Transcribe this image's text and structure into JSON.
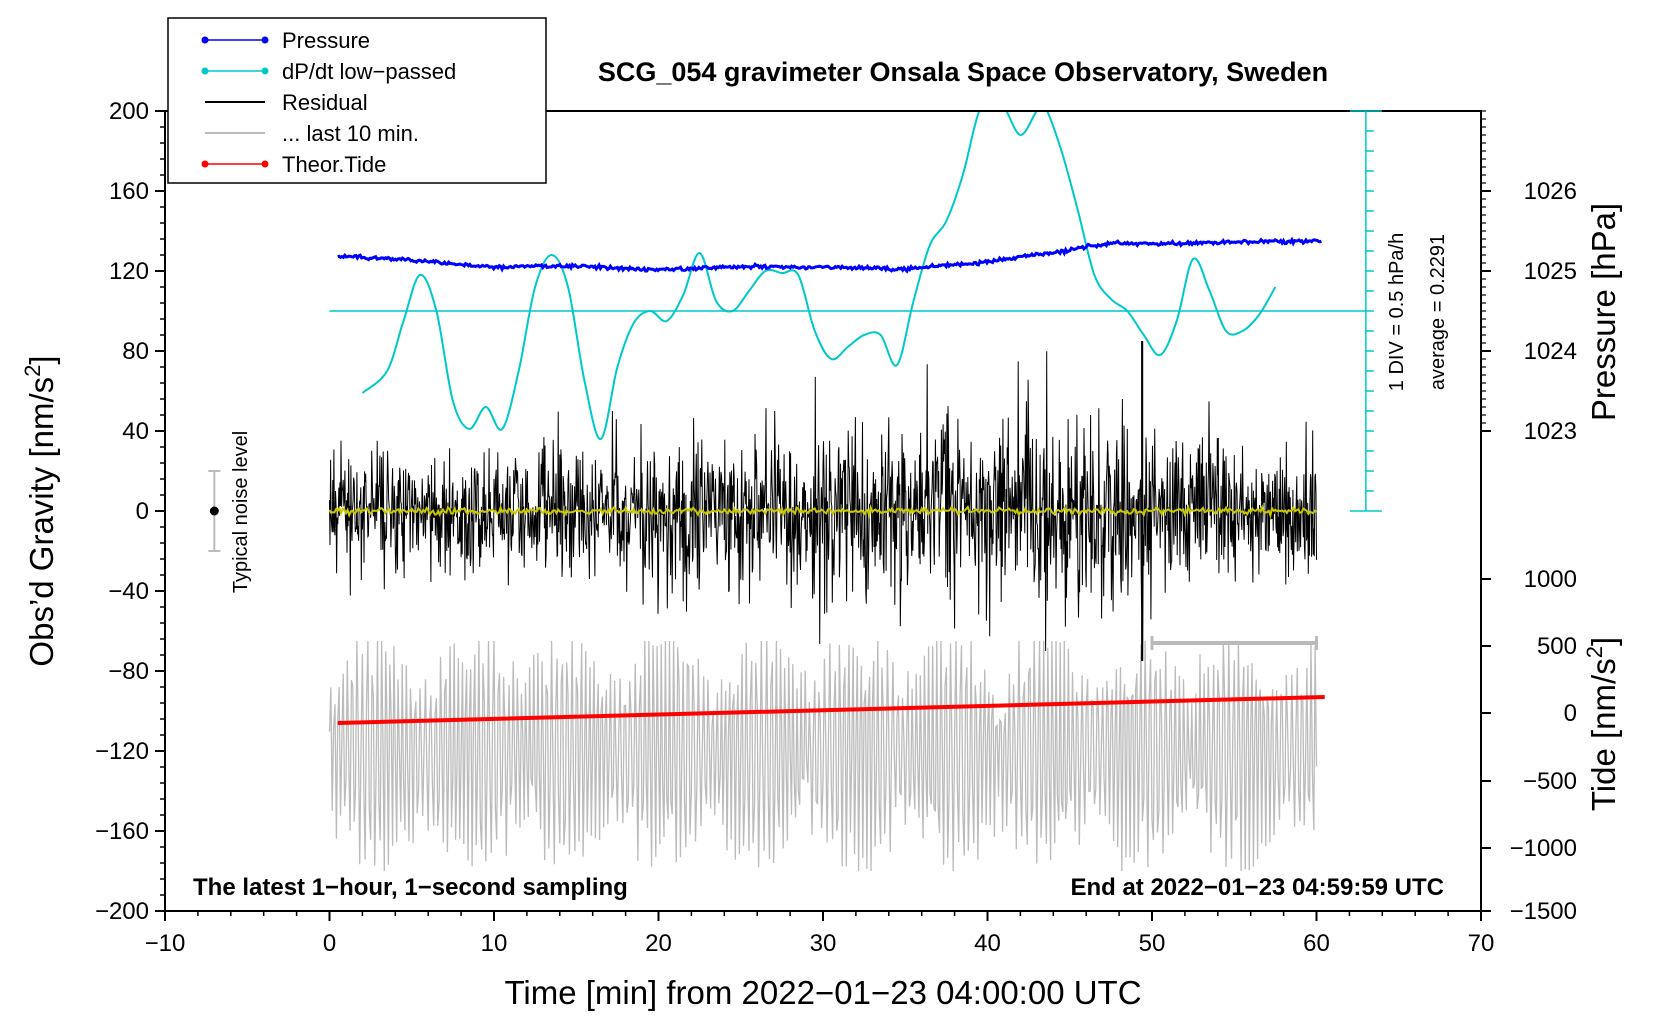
{
  "chart_data": {
    "type": "line",
    "title": "SCG_054 gravimeter Onsala Space Observatory, Sweden",
    "xlabel": "Time [min] from 2022−01−23 04:00:00 UTC",
    "ylabel_left": "Obs’d Gravity [nm/s",
    "ylabel_left_sup": "2",
    "ylabel_left_end": "]",
    "ylabel_right_top": "Pressure [hPa]",
    "ylabel_right_bottom": "Tide [nm/s",
    "ylabel_right_bottom_sup": "2",
    "ylabel_right_bottom_end": "]",
    "xlim": [
      -10,
      70
    ],
    "ylim": [
      -200,
      200
    ],
    "x_ticks": [
      -10,
      0,
      10,
      20,
      30,
      40,
      50,
      60,
      70
    ],
    "x_tick_labels": [
      "−10",
      "0",
      "10",
      "20",
      "30",
      "40",
      "50",
      "60",
      "70"
    ],
    "y_ticks": [
      200,
      160,
      120,
      80,
      40,
      0,
      -40,
      -80,
      -120,
      -160,
      -200
    ],
    "y_tick_labels": [
      "200",
      "160",
      "120",
      "80",
      "40",
      "0",
      "−40",
      "−80",
      "−120",
      "−160",
      "−200"
    ],
    "pressure_axis": {
      "ticks": [
        1023,
        1024,
        1025,
        1026
      ],
      "tick_labels": [
        "1023",
        "1024",
        "1025",
        "1026"
      ],
      "gravity_equiv": [
        40,
        80,
        120,
        160
      ]
    },
    "tide_axis": {
      "ticks": [
        1000,
        500,
        0,
        -500,
        -1000,
        -1500
      ],
      "tick_labels": [
        "1000",
        "500",
        "0",
        "−500",
        "−1000",
        "−1500"
      ],
      "gravity_equiv": [
        -34,
        -67.5,
        -101,
        -135,
        -168.5,
        -200
      ]
    },
    "legend": [
      {
        "label": "Pressure",
        "color": "#0000ff",
        "marker": true
      },
      {
        "label": "dP/dt low−passed",
        "color": "#00c8c8",
        "marker": true
      },
      {
        "label": "Residual",
        "color": "#000000",
        "marker": false
      },
      {
        "label": "... last 10 min.",
        "color": "#bbbbbb",
        "marker": false
      },
      {
        "label": "Theor.Tide",
        "color": "#ff0000",
        "marker": true
      }
    ],
    "series": [
      {
        "name": "Pressure",
        "color": "#0000ff",
        "x": [
          0.5,
          5,
          10,
          15,
          20,
          25,
          30,
          35,
          40,
          45,
          47.5,
          50,
          55,
          60.3
        ],
        "values": [
          127.5,
          125.5,
          122,
          122.5,
          120.5,
          122,
          122,
          121,
          124.5,
          130.5,
          134,
          133.5,
          134.5,
          135
        ]
      },
      {
        "name": "dP/dt low−passed",
        "color": "#00c8c8",
        "x": [
          2,
          3.5,
          4.5,
          5.5,
          6.5,
          7.5,
          8.5,
          9.5,
          10.5,
          11.5,
          12.5,
          13.5,
          14.5,
          15.5,
          16.5,
          17.5,
          18.5,
          19.5,
          20.5,
          21.5,
          22.5,
          23.5,
          24.5,
          25.5,
          26.5,
          27.5,
          28.5,
          29.5,
          30.5,
          31.5,
          32.5,
          33.5,
          34.5,
          35.5,
          36.5,
          37.5,
          38.5,
          39.5,
          40.3,
          41,
          42,
          43,
          43.5,
          44.5,
          45.5,
          46.5,
          47.5,
          48.5,
          49.5,
          50.5,
          51.5,
          52.5,
          53.5,
          54.5,
          55.5,
          56.5,
          57.5
        ],
        "values": [
          59,
          70,
          95,
          118,
          100,
          55,
          41,
          52,
          41,
          70,
          112,
          128,
          112,
          65,
          36,
          72,
          94,
          100,
          95,
          108,
          129,
          105,
          100,
          110,
          120,
          119,
          118,
          90,
          76,
          82,
          88,
          88,
          73,
          105,
          133,
          145,
          168,
          200,
          202,
          202,
          188,
          200,
          202,
          180,
          150,
          118,
          106,
          100,
          88,
          78,
          95,
          126,
          110,
          90,
          90,
          98,
          112
        ]
      },
      {
        "name": "Residual",
        "color": "#000000",
        "x_range": [
          0,
          60
        ],
        "noise_envelope": [
          [
            0,
            45
          ],
          [
            10,
            45
          ],
          [
            22.5,
            60
          ],
          [
            32.5,
            70
          ],
          [
            49.4,
            85
          ],
          [
            50,
            60
          ],
          [
            60,
            45
          ]
        ],
        "spikes": [
          {
            "x": 49.4,
            "values": [
              85,
              -60,
              70,
              -75
            ]
          }
        ]
      },
      {
        "name": "Residual smoothed",
        "color": "#c8c800",
        "x_range": [
          0,
          60
        ],
        "values_level": 0
      },
      {
        "name": "... last 10 min.",
        "color": "#bbbbbb",
        "x_range": [
          0,
          60
        ],
        "values_range": [
          -180,
          -65
        ],
        "center": -120
      },
      {
        "name": "Theor.Tide",
        "color": "#ff0000",
        "x": [
          0.5,
          60.5
        ],
        "values": [
          -106,
          -93
        ]
      }
    ],
    "reference_line": {
      "name": "average = 0.2291",
      "value": 100,
      "color": "#00c8c8"
    },
    "dpdt_scale_bar": {
      "x": 63,
      "range": [
        0,
        200
      ],
      "divisions": 20,
      "label": "1 DIV = 0.5 hPa/h",
      "avg_label": "average = 0.2291"
    },
    "noise_level": {
      "label": "Typical noise level",
      "x": -7,
      "center": 0,
      "range": [
        -20,
        20
      ]
    },
    "last_10min_bar": {
      "x_start": 50,
      "x_end": 60,
      "y": -66
    },
    "annotations": {
      "left": "The latest 1−hour, 1−second sampling",
      "right": "End at 2022−01−23 04:59:59 UTC"
    }
  }
}
